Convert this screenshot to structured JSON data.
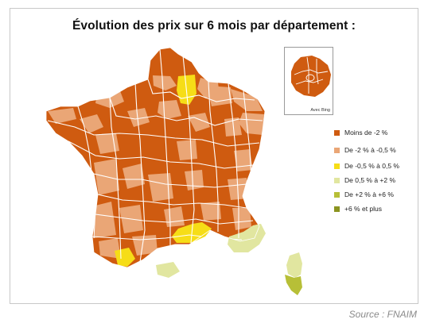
{
  "title": "Évolution des prix sur 6 mois par département :",
  "inset": {
    "label": "Avec Bing"
  },
  "legend": [
    {
      "label": "Moins de -2 %",
      "color": "#cf5b10"
    },
    {
      "label": "De -2 % à -0,5 %",
      "color": "#eaa676"
    },
    {
      "label": "De -0,5 % à 0,5 %",
      "color": "#f6dd17"
    },
    {
      "label": "De 0,5 % à +2 %",
      "color": "#e1e6a0"
    },
    {
      "label": "De +2 % à +6 %",
      "color": "#b7bf37"
    },
    {
      "label": "+6 % et plus",
      "color": "#8b9420"
    }
  ],
  "source": "Source : FNAIM"
}
